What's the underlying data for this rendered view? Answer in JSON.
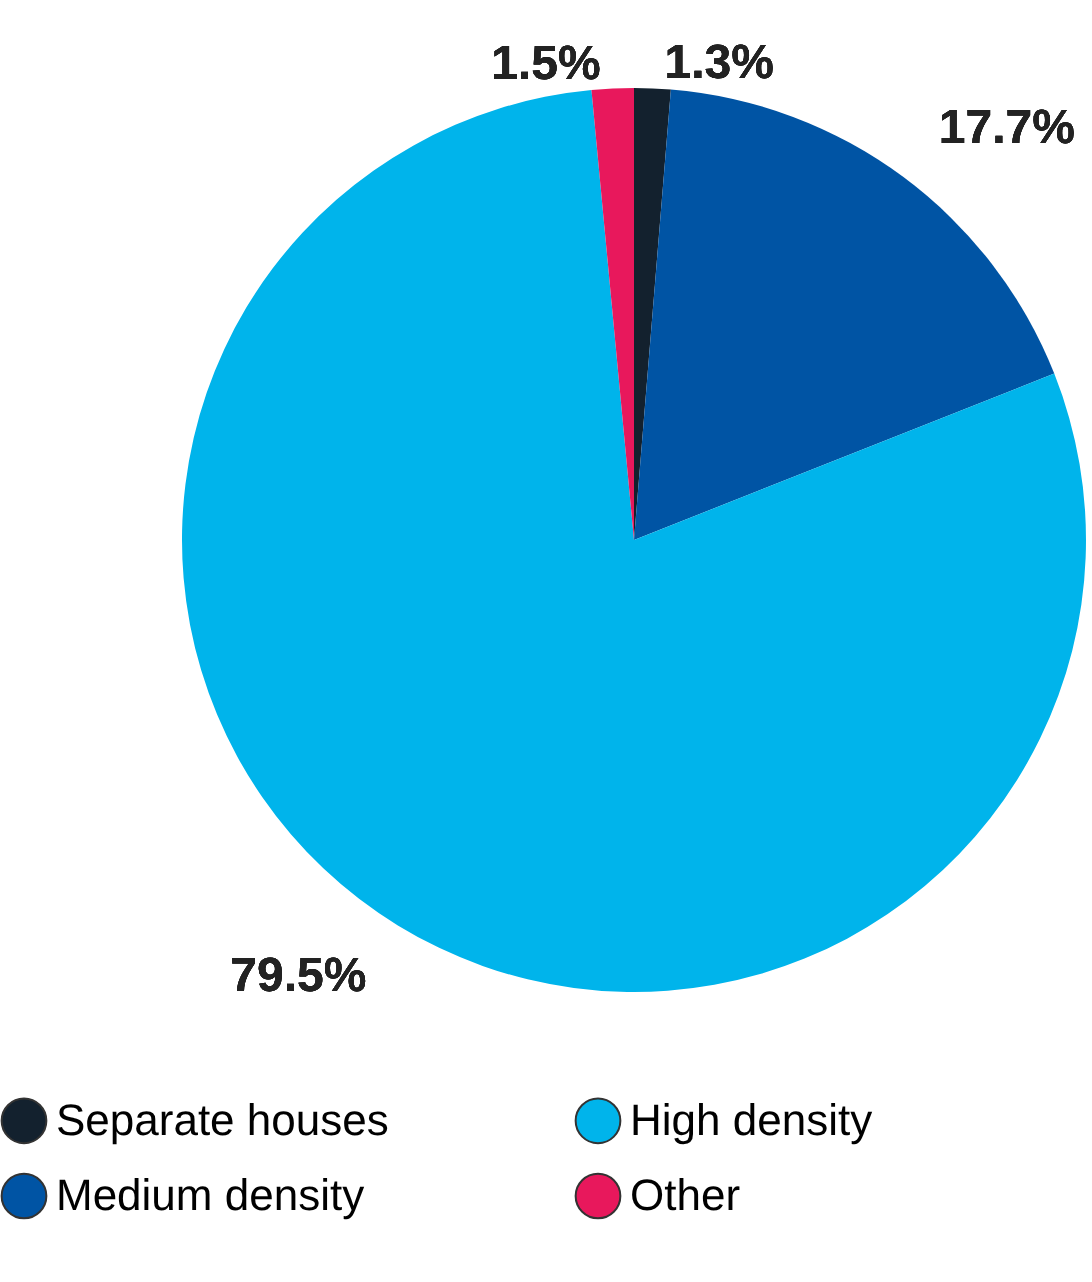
{
  "chart_data": {
    "type": "pie",
    "categories": [
      "Separate houses",
      "Medium density",
      "High density",
      "Other"
    ],
    "values": [
      1.3,
      17.7,
      79.5,
      1.5
    ],
    "colors": [
      "#13212e",
      "#0054a4",
      "#00b4eb",
      "#e8185c"
    ],
    "value_labels": [
      "1.3%",
      "17.7%",
      "79.5%",
      "1.5%"
    ],
    "legend": "bottom"
  }
}
